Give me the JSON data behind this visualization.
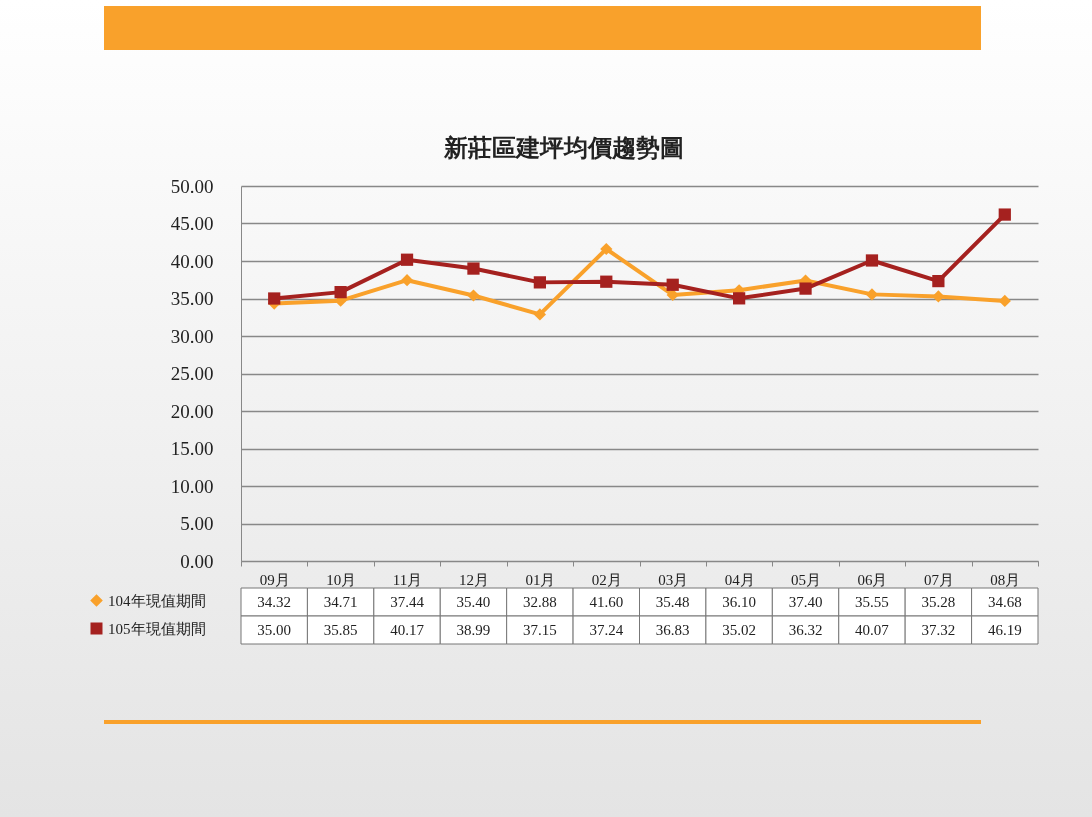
{
  "chart_data": {
    "type": "line",
    "title": "新莊區建坪均價趨勢圖",
    "categories": [
      "09月",
      "10月",
      "11月",
      "12月",
      "01月",
      "02月",
      "03月",
      "04月",
      "05月",
      "06月",
      "07月",
      "08月"
    ],
    "series": [
      {
        "name": "104年現值期間",
        "color": "#f9a12b",
        "marker": "diamond",
        "values": [
          34.32,
          34.71,
          37.44,
          35.4,
          32.88,
          41.6,
          35.48,
          36.1,
          37.4,
          35.55,
          35.28,
          34.68
        ],
        "value_labels": [
          "34.32",
          "34.71",
          "37.44",
          "35.40",
          "32.88",
          "41.60",
          "35.48",
          "36.10",
          "37.40",
          "35.55",
          "35.28",
          "34.68"
        ]
      },
      {
        "name": "105年現值期間",
        "color": "#a5211f",
        "marker": "square",
        "values": [
          35.0,
          35.85,
          40.17,
          38.99,
          37.15,
          37.24,
          36.83,
          35.02,
          36.32,
          40.07,
          37.32,
          46.19
        ],
        "value_labels": [
          "35.00",
          "35.85",
          "40.17",
          "38.99",
          "37.15",
          "37.24",
          "36.83",
          "35.02",
          "36.32",
          "40.07",
          "37.32",
          "46.19"
        ]
      }
    ],
    "ylim": [
      0,
      50
    ],
    "yticks": [
      {
        "value": 0,
        "label": "0.00"
      },
      {
        "value": 5,
        "label": "5.00"
      },
      {
        "value": 10,
        "label": "10.00"
      },
      {
        "value": 15,
        "label": "15.00"
      },
      {
        "value": 20,
        "label": "20.00"
      },
      {
        "value": 25,
        "label": "25.00"
      },
      {
        "value": 30,
        "label": "30.00"
      },
      {
        "value": 35,
        "label": "35.00"
      },
      {
        "value": 40,
        "label": "40.00"
      },
      {
        "value": 45,
        "label": "45.00"
      },
      {
        "value": 50,
        "label": "50.00"
      }
    ],
    "grid": "y",
    "legend": "bottom left",
    "line_style": "solid"
  }
}
